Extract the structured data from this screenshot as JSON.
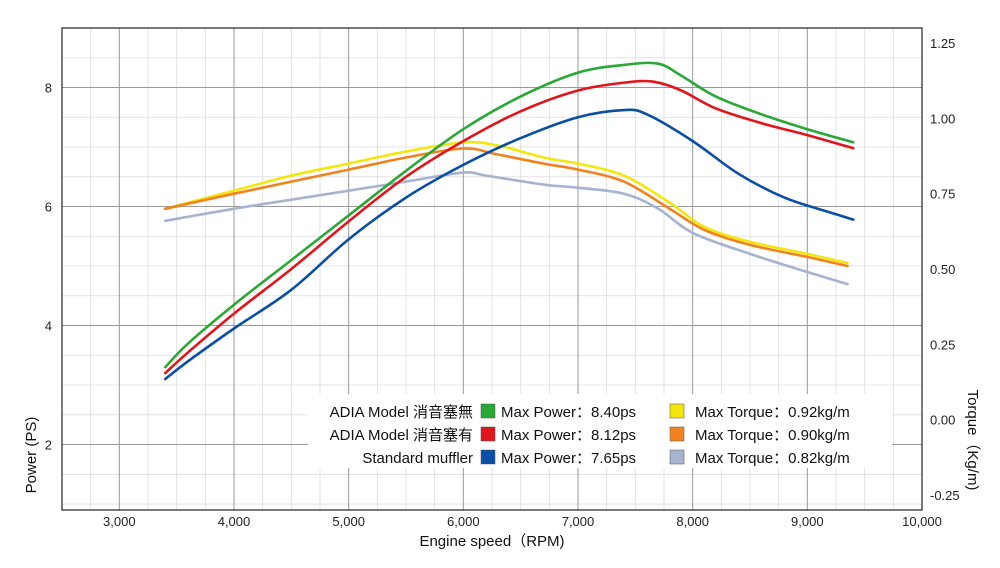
{
  "chart_data": {
    "type": "line",
    "xlabel": "Engine speed（RPM)",
    "ylabel_left": "Power (PS)",
    "ylabel_right": "Torque（Kg/m)",
    "xlim": [
      2500,
      10000
    ],
    "ylim_left": [
      0.9,
      9
    ],
    "ylim_right": [
      -0.3,
      1.3
    ],
    "x_ticks": [
      3000,
      4000,
      5000,
      6000,
      7000,
      8000,
      9000,
      10000
    ],
    "x_tick_labels": [
      "3,000",
      "4,000",
      "5,000",
      "6,000",
      "7,000",
      "8,000",
      "9,000",
      "10,000"
    ],
    "y_left_ticks": [
      2,
      4,
      6,
      8
    ],
    "y_left_tick_labels": [
      "2",
      "4",
      "6",
      "8"
    ],
    "y_right_ticks": [
      -0.25,
      0,
      0.25,
      0.5,
      0.75,
      1.0,
      1.25
    ],
    "y_right_tick_labels": [
      "-0.25",
      "0.00",
      "0.25",
      "0.50",
      "0.75",
      "1.00",
      "1.25"
    ],
    "grid": true,
    "legend_position": "bottom-right",
    "series": [
      {
        "name": "ADIA Model 消音塞無",
        "kind": "power",
        "axis": "left",
        "color": "#2aa836",
        "legend_label": "Max Power：8.40ps",
        "points": [
          [
            3400,
            3.3
          ],
          [
            3600,
            3.7
          ],
          [
            4000,
            4.35
          ],
          [
            4500,
            5.1
          ],
          [
            5000,
            5.85
          ],
          [
            5500,
            6.6
          ],
          [
            6000,
            7.3
          ],
          [
            6500,
            7.85
          ],
          [
            7000,
            8.25
          ],
          [
            7400,
            8.38
          ],
          [
            7700,
            8.4
          ],
          [
            7900,
            8.2
          ],
          [
            8200,
            7.85
          ],
          [
            8600,
            7.55
          ],
          [
            9000,
            7.3
          ],
          [
            9400,
            7.08
          ]
        ]
      },
      {
        "name": "ADIA Model 消音塞有",
        "kind": "power",
        "axis": "left",
        "color": "#e2141c",
        "legend_label": "Max Power：8.12ps",
        "points": [
          [
            3400,
            3.2
          ],
          [
            3600,
            3.55
          ],
          [
            4000,
            4.2
          ],
          [
            4500,
            4.95
          ],
          [
            5000,
            5.75
          ],
          [
            5500,
            6.5
          ],
          [
            6000,
            7.1
          ],
          [
            6500,
            7.6
          ],
          [
            7000,
            7.95
          ],
          [
            7400,
            8.08
          ],
          [
            7650,
            8.1
          ],
          [
            7900,
            7.95
          ],
          [
            8200,
            7.65
          ],
          [
            8600,
            7.4
          ],
          [
            9000,
            7.2
          ],
          [
            9400,
            6.98
          ]
        ]
      },
      {
        "name": "Standard muffler",
        "kind": "power",
        "axis": "left",
        "color": "#0a4ea5",
        "legend_label": "Max Power：7.65ps",
        "points": [
          [
            3400,
            3.1
          ],
          [
            3600,
            3.4
          ],
          [
            4000,
            3.95
          ],
          [
            4500,
            4.6
          ],
          [
            5000,
            5.45
          ],
          [
            5500,
            6.15
          ],
          [
            6000,
            6.7
          ],
          [
            6500,
            7.15
          ],
          [
            7000,
            7.5
          ],
          [
            7400,
            7.62
          ],
          [
            7600,
            7.55
          ],
          [
            8000,
            7.1
          ],
          [
            8400,
            6.55
          ],
          [
            8800,
            6.15
          ],
          [
            9200,
            5.9
          ],
          [
            9400,
            5.78
          ]
        ]
      },
      {
        "name": "ADIA Model 消音塞無",
        "kind": "torque",
        "axis": "right",
        "color": "#f2e60a",
        "legend_label": "Max Torque：0.92kg/m",
        "points": [
          [
            3400,
            0.7
          ],
          [
            4000,
            0.76
          ],
          [
            4500,
            0.81
          ],
          [
            5000,
            0.85
          ],
          [
            5500,
            0.89
          ],
          [
            6000,
            0.92
          ],
          [
            6300,
            0.91
          ],
          [
            6700,
            0.87
          ],
          [
            7000,
            0.85
          ],
          [
            7400,
            0.81
          ],
          [
            7800,
            0.72
          ],
          [
            8100,
            0.64
          ],
          [
            8500,
            0.59
          ],
          [
            9000,
            0.55
          ],
          [
            9350,
            0.52
          ]
        ]
      },
      {
        "name": "ADIA Model 消音塞有",
        "kind": "torque",
        "axis": "right",
        "color": "#f0831f",
        "legend_label": "Max Torque：0.90kg/m",
        "points": [
          [
            3400,
            0.7
          ],
          [
            4000,
            0.75
          ],
          [
            4500,
            0.79
          ],
          [
            5000,
            0.83
          ],
          [
            5500,
            0.87
          ],
          [
            6000,
            0.9
          ],
          [
            6300,
            0.88
          ],
          [
            6700,
            0.85
          ],
          [
            7000,
            0.83
          ],
          [
            7400,
            0.79
          ],
          [
            7800,
            0.7
          ],
          [
            8100,
            0.63
          ],
          [
            8500,
            0.58
          ],
          [
            9000,
            0.54
          ],
          [
            9350,
            0.51
          ]
        ]
      },
      {
        "name": "Standard muffler",
        "kind": "torque",
        "axis": "right",
        "color": "#a7b4cf",
        "legend_label": "Max Torque：0.82kg/m",
        "points": [
          [
            3400,
            0.66
          ],
          [
            4000,
            0.7
          ],
          [
            4500,
            0.73
          ],
          [
            5000,
            0.76
          ],
          [
            5500,
            0.79
          ],
          [
            6000,
            0.82
          ],
          [
            6200,
            0.81
          ],
          [
            6700,
            0.78
          ],
          [
            7000,
            0.77
          ],
          [
            7400,
            0.75
          ],
          [
            7700,
            0.7
          ],
          [
            8000,
            0.62
          ],
          [
            8500,
            0.55
          ],
          [
            9000,
            0.49
          ],
          [
            9350,
            0.45
          ]
        ]
      }
    ]
  },
  "legend": {
    "rows": [
      {
        "model": "ADIA Model 消音塞無",
        "power_color": "#2aa836",
        "power_label": "Max Power：8.40ps",
        "torque_color": "#f2e60a",
        "torque_label": "Max Torque：0.92kg/m"
      },
      {
        "model": "ADIA Model 消音塞有",
        "power_color": "#e2141c",
        "power_label": "Max Power：8.12ps",
        "torque_color": "#f0831f",
        "torque_label": "Max Torque：0.90kg/m"
      },
      {
        "model": "Standard muffler",
        "power_color": "#0a4ea5",
        "power_label": "Max Power：7.65ps",
        "torque_color": "#a7b4cf",
        "torque_label": "Max Torque：0.82kg/m"
      }
    ]
  }
}
